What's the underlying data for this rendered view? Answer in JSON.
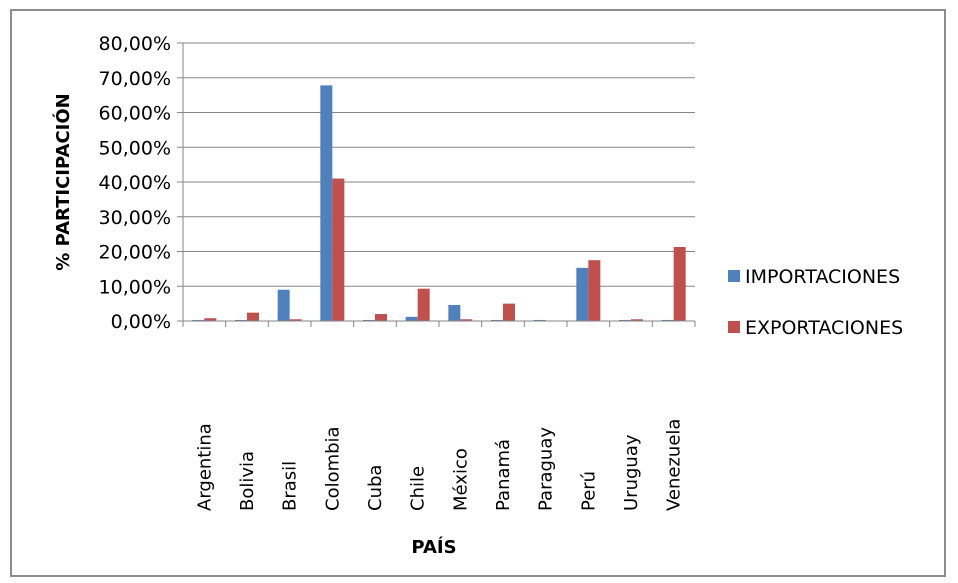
{
  "chart_data": {
    "type": "bar",
    "title": "",
    "xlabel": "PAÍS",
    "ylabel": "% PARTICIPACIÓN",
    "ylim": [
      0,
      80
    ],
    "yticks": [
      "0,00%",
      "10,00%",
      "20,00%",
      "30,00%",
      "40,00%",
      "50,00%",
      "60,00%",
      "70,00%",
      "80,00%"
    ],
    "categories": [
      "Argentina",
      "Bolivia",
      "Brasil",
      "Colombia",
      "Cuba",
      "Chile",
      "México",
      "Panamá",
      "Paraguay",
      "Perú",
      "Uruguay",
      "Venezuela"
    ],
    "series": [
      {
        "name": "IMPORTACIONES",
        "color": "#4f81bd",
        "values": [
          0.3,
          0.3,
          9.0,
          67.8,
          0.3,
          1.2,
          4.6,
          0.3,
          0.3,
          15.3,
          0.3,
          0.3
        ]
      },
      {
        "name": "EXPORTACIONES",
        "color": "#c0504d",
        "values": [
          0.8,
          2.4,
          0.5,
          41.0,
          2.0,
          9.3,
          0.5,
          5.0,
          0.1,
          17.5,
          0.5,
          21.3
        ]
      }
    ],
    "grid": true,
    "legend_position": "right"
  }
}
